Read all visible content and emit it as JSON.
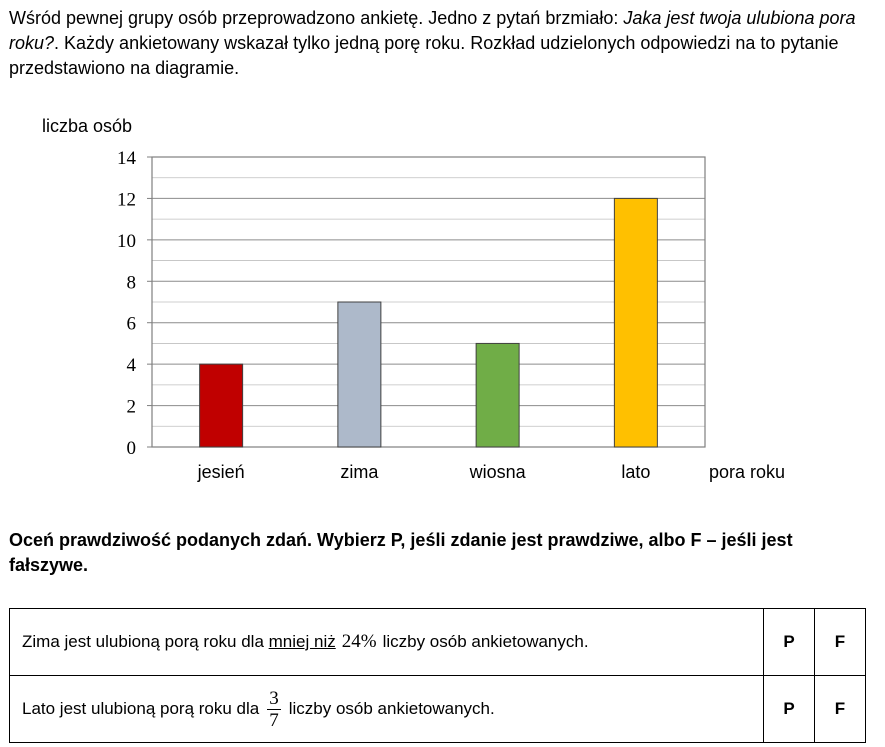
{
  "intro": {
    "part1": "Wśród pewnej grupy osób przeprowadzono ankietę. Jedno z pytań brzmiało: ",
    "question": "Jaka jest twoja ulubiona pora roku?",
    "part2": ". Każdy ankietowany wskazał tylko jedną porę roku. Rozkład udzielonych odpowiedzi na to pytanie przedstawiono na diagramie."
  },
  "chart_data": {
    "type": "bar",
    "categories": [
      "jesień",
      "zima",
      "wiosna",
      "lato"
    ],
    "values": [
      4,
      7,
      5,
      12
    ],
    "colors": [
      "#C00000",
      "#ADB9CA",
      "#70AD47",
      "#FFC000"
    ],
    "title": "",
    "xlabel": "pora roku",
    "ylabel": "liczba osób",
    "ylim": [
      0,
      14
    ],
    "yticks": [
      0,
      2,
      4,
      6,
      8,
      10,
      12,
      14
    ],
    "minor_grid_step": 1,
    "grid": true,
    "legend": "none"
  },
  "instruction": "Oceń prawdziwość podanych zdań. Wybierz P, jeśli zdanie jest prawdziwe, albo F – jeśli jest fałszywe.",
  "statements": [
    {
      "before": "Zima jest ulubioną porą roku dla ",
      "underlined": "mniej niż",
      "value": "24%",
      "after": "liczby osób ankietowanych.",
      "option_true": "P",
      "option_false": "F"
    },
    {
      "before": "Lato jest ulubioną porą roku dla",
      "fraction_numerator": "3",
      "fraction_denominator": "7",
      "after": "liczby osób ankietowanych.",
      "option_true": "P",
      "option_false": "F"
    }
  ]
}
